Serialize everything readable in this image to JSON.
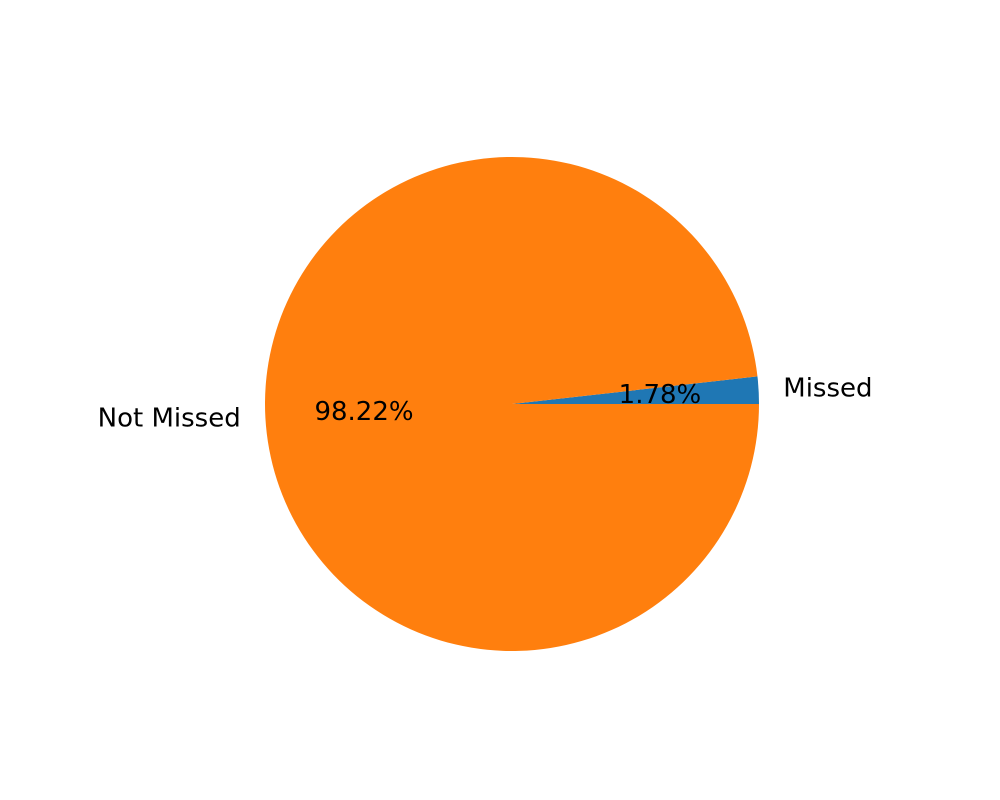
{
  "chart_data": {
    "type": "pie",
    "title": "",
    "slices": [
      {
        "label": "Missed",
        "value": 1.78,
        "percent_label": "1.78%",
        "color": "#1f77b4"
      },
      {
        "label": "Not Missed",
        "value": 98.22,
        "percent_label": "98.22%",
        "color": "#ff7f0e"
      }
    ],
    "legend": "none"
  }
}
